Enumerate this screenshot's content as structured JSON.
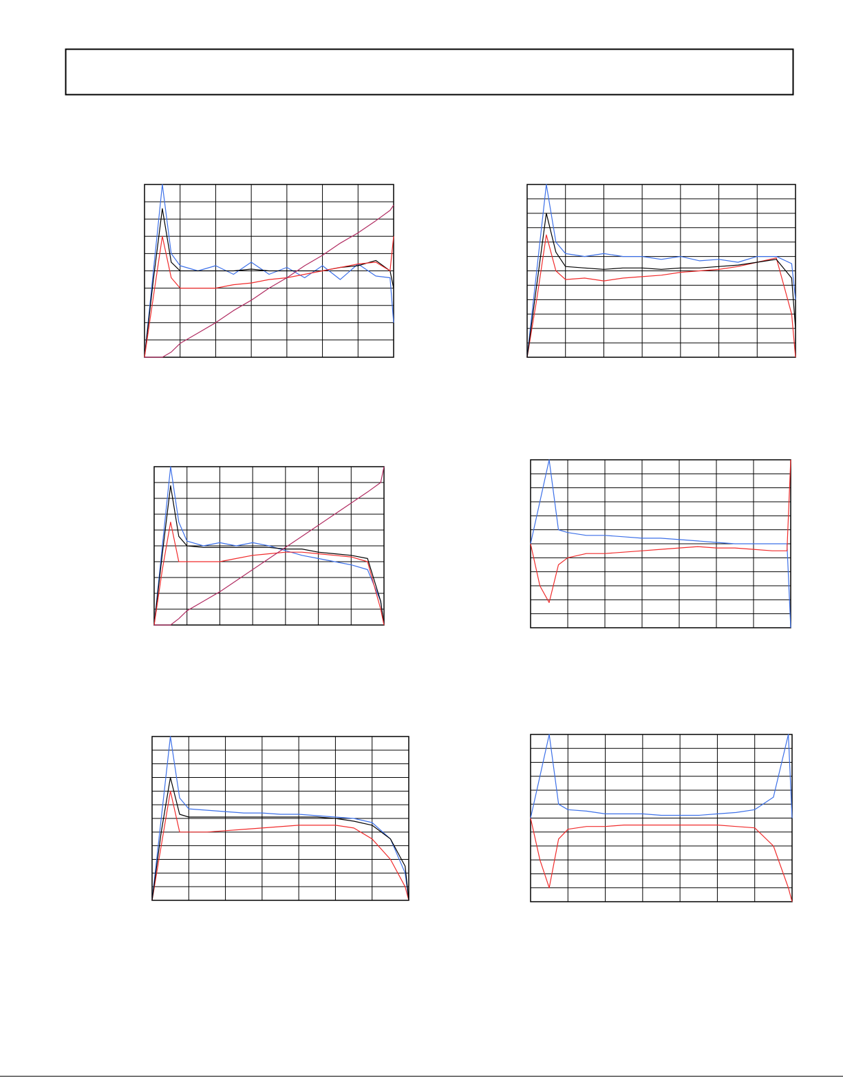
{
  "chart_data": [
    {
      "type": "line",
      "grid": true,
      "xlim": [
        0,
        7
      ],
      "ylim": [
        0,
        10
      ],
      "xticks": [
        0,
        1,
        2,
        3,
        4,
        5,
        6,
        7
      ],
      "yticks": [
        0,
        1,
        2,
        3,
        4,
        5,
        6,
        7,
        8,
        9,
        10
      ],
      "x": [
        0,
        0.25,
        0.5,
        0.75,
        1,
        1.5,
        2,
        2.5,
        3,
        3.5,
        4,
        4.5,
        5,
        5.5,
        6,
        6.5,
        6.9,
        7
      ],
      "series": [
        {
          "color": "#3b6fe8",
          "values": [
            0,
            5,
            10,
            6,
            5.3,
            5,
            5.3,
            4.8,
            5.5,
            4.8,
            5.2,
            4.6,
            5.3,
            4.5,
            5.4,
            4.7,
            4.6,
            2
          ]
        },
        {
          "color": "#000000",
          "values": [
            0,
            4.5,
            8.6,
            5.5,
            5,
            5,
            5,
            5,
            5.1,
            5,
            5,
            5,
            5,
            5.2,
            5.3,
            5.6,
            5,
            4
          ]
        },
        {
          "color": "#f02a2a",
          "values": [
            0,
            3.5,
            7,
            4.6,
            4,
            4,
            4,
            4.2,
            4.3,
            4.5,
            4.6,
            4.8,
            5,
            5.2,
            5.4,
            5.5,
            5,
            7
          ]
        },
        {
          "color": "#b02a60",
          "values": [
            0,
            0,
            0,
            0.3,
            0.8,
            1.4,
            2,
            2.7,
            3.3,
            4,
            4.6,
            5.3,
            5.9,
            6.6,
            7.2,
            7.9,
            8.5,
            8.8
          ]
        }
      ]
    },
    {
      "type": "line",
      "grid": true,
      "xlim": [
        0,
        7
      ],
      "ylim": [
        0,
        12
      ],
      "xticks": [
        0,
        1,
        2,
        3,
        4,
        5,
        6,
        7
      ],
      "yticks": [
        0,
        1,
        2,
        3,
        4,
        5,
        6,
        7,
        8,
        9,
        10,
        11,
        12
      ],
      "x": [
        0,
        0.25,
        0.5,
        0.75,
        1,
        1.5,
        2,
        2.5,
        3,
        3.5,
        4,
        4.5,
        5,
        5.5,
        6,
        6.5,
        6.9,
        7
      ],
      "series": [
        {
          "color": "#3b6fe8",
          "values": [
            0,
            6,
            12,
            8,
            7.2,
            7,
            7.2,
            7,
            7,
            6.8,
            7,
            6.7,
            6.8,
            6.6,
            7,
            7,
            6.5,
            4
          ]
        },
        {
          "color": "#f02a2a",
          "values": [
            0,
            4,
            8.5,
            6,
            5.4,
            5.5,
            5.3,
            5.5,
            5.6,
            5.7,
            5.9,
            6,
            6.1,
            6.3,
            6.6,
            6.9,
            3,
            0
          ]
        },
        {
          "color": "#000000",
          "values": [
            0,
            5,
            10,
            7.3,
            6.3,
            6.2,
            6.1,
            6.2,
            6.2,
            6.1,
            6.2,
            6.2,
            6.3,
            6.4,
            6.6,
            6.8,
            5.5,
            2
          ]
        }
      ]
    },
    {
      "type": "line",
      "grid": true,
      "xlim": [
        0,
        7
      ],
      "ylim": [
        0,
        10
      ],
      "xticks": [
        0,
        1,
        2,
        3,
        4,
        5,
        6,
        7
      ],
      "yticks": [
        0,
        1,
        2,
        3,
        4,
        5,
        6,
        7,
        8,
        9,
        10
      ],
      "x": [
        0,
        0.25,
        0.5,
        0.75,
        1,
        1.5,
        2,
        2.5,
        3,
        3.5,
        4,
        4.5,
        5,
        5.5,
        6,
        6.5,
        6.9,
        7
      ],
      "series": [
        {
          "color": "#3b6fe8",
          "values": [
            0,
            5,
            10,
            6.5,
            5.3,
            5,
            5.2,
            5,
            5.2,
            5,
            4.7,
            4.4,
            4.2,
            4,
            3.8,
            3.5,
            1.5,
            0
          ]
        },
        {
          "color": "#000000",
          "values": [
            0,
            4.5,
            8.8,
            5.6,
            5,
            4.9,
            4.9,
            4.9,
            4.9,
            4.9,
            4.8,
            4.8,
            4.6,
            4.5,
            4.4,
            4.2,
            1.5,
            0
          ]
        },
        {
          "color": "#f02a2a",
          "values": [
            0,
            3.5,
            6.5,
            4,
            4,
            4,
            4,
            4.2,
            4.4,
            4.5,
            4.6,
            4.6,
            4.5,
            4.4,
            4.3,
            4,
            1,
            0
          ]
        },
        {
          "color": "#b02a60",
          "values": [
            0,
            0,
            0,
            0.4,
            0.9,
            1.5,
            2.1,
            2.8,
            3.5,
            4.2,
            4.9,
            5.6,
            6.3,
            7,
            7.7,
            8.4,
            9,
            10
          ]
        }
      ]
    },
    {
      "type": "line",
      "grid": true,
      "xlim": [
        0,
        7
      ],
      "ylim": [
        0,
        12
      ],
      "xticks": [
        0,
        1,
        2,
        3,
        4,
        5,
        6,
        7
      ],
      "yticks": [
        0,
        1,
        2,
        3,
        4,
        5,
        6,
        7,
        8,
        9,
        10,
        11,
        12
      ],
      "x": [
        0,
        0.25,
        0.5,
        0.75,
        1,
        1.5,
        2,
        2.5,
        3,
        3.5,
        4,
        4.5,
        5,
        5.5,
        6,
        6.5,
        6.9,
        7
      ],
      "series": [
        {
          "color": "#3b6fe8",
          "values": [
            6,
            9,
            12,
            7,
            6.8,
            6.6,
            6.6,
            6.5,
            6.4,
            6.4,
            6.3,
            6.2,
            6.1,
            6,
            6,
            6,
            6,
            0
          ]
        },
        {
          "color": "#f02a2a",
          "values": [
            6,
            3,
            1.8,
            4.5,
            5,
            5.3,
            5.3,
            5.4,
            5.5,
            5.6,
            5.7,
            5.8,
            5.7,
            5.7,
            5.6,
            5.5,
            5.5,
            12
          ]
        }
      ]
    },
    {
      "type": "line",
      "grid": true,
      "xlim": [
        0,
        7
      ],
      "ylim": [
        0,
        12
      ],
      "xticks": [
        0,
        1,
        2,
        3,
        4,
        5,
        6,
        7
      ],
      "yticks": [
        0,
        1,
        2,
        3,
        4,
        5,
        6,
        7,
        8,
        9,
        10,
        11,
        12
      ],
      "x": [
        0,
        0.25,
        0.5,
        0.75,
        1,
        1.5,
        2,
        2.5,
        3,
        3.5,
        4,
        4.5,
        5,
        5.5,
        6,
        6.5,
        6.9,
        7
      ],
      "series": [
        {
          "color": "#3b6fe8",
          "values": [
            0,
            6,
            12,
            7.5,
            6.7,
            6.6,
            6.5,
            6.4,
            6.4,
            6.3,
            6.3,
            6.2,
            6.1,
            6,
            5.7,
            4.5,
            2,
            0
          ]
        },
        {
          "color": "#f02a2a",
          "values": [
            0,
            4,
            8,
            5,
            5,
            5,
            5.1,
            5.2,
            5.3,
            5.4,
            5.5,
            5.5,
            5.5,
            5.3,
            4.5,
            3,
            1,
            0
          ]
        },
        {
          "color": "#000000",
          "values": [
            0,
            5,
            9,
            6.3,
            6.1,
            6.1,
            6.1,
            6.1,
            6.1,
            6.1,
            6.1,
            6.1,
            6,
            5.8,
            5.5,
            4.5,
            2.5,
            0
          ]
        }
      ]
    },
    {
      "type": "line",
      "grid": true,
      "xlim": [
        0,
        7
      ],
      "ylim": [
        0,
        12
      ],
      "xticks": [
        0,
        1,
        2,
        3,
        4,
        5,
        6,
        7
      ],
      "yticks": [
        0,
        1,
        2,
        3,
        4,
        5,
        6,
        7,
        8,
        9,
        10,
        11,
        12
      ],
      "x": [
        0,
        0.25,
        0.5,
        0.75,
        1,
        1.5,
        2,
        2.5,
        3,
        3.5,
        4,
        4.5,
        5,
        5.5,
        6,
        6.5,
        6.9,
        7
      ],
      "series": [
        {
          "color": "#3b6fe8",
          "values": [
            6,
            9,
            12,
            7,
            6.6,
            6.5,
            6.3,
            6.3,
            6.3,
            6.2,
            6.2,
            6.2,
            6.3,
            6.4,
            6.6,
            7.5,
            12,
            6
          ]
        },
        {
          "color": "#f02a2a",
          "values": [
            6,
            3,
            1,
            4.5,
            5.2,
            5.4,
            5.4,
            5.5,
            5.5,
            5.5,
            5.5,
            5.5,
            5.5,
            5.4,
            5.3,
            4,
            1,
            0
          ]
        }
      ]
    }
  ]
}
